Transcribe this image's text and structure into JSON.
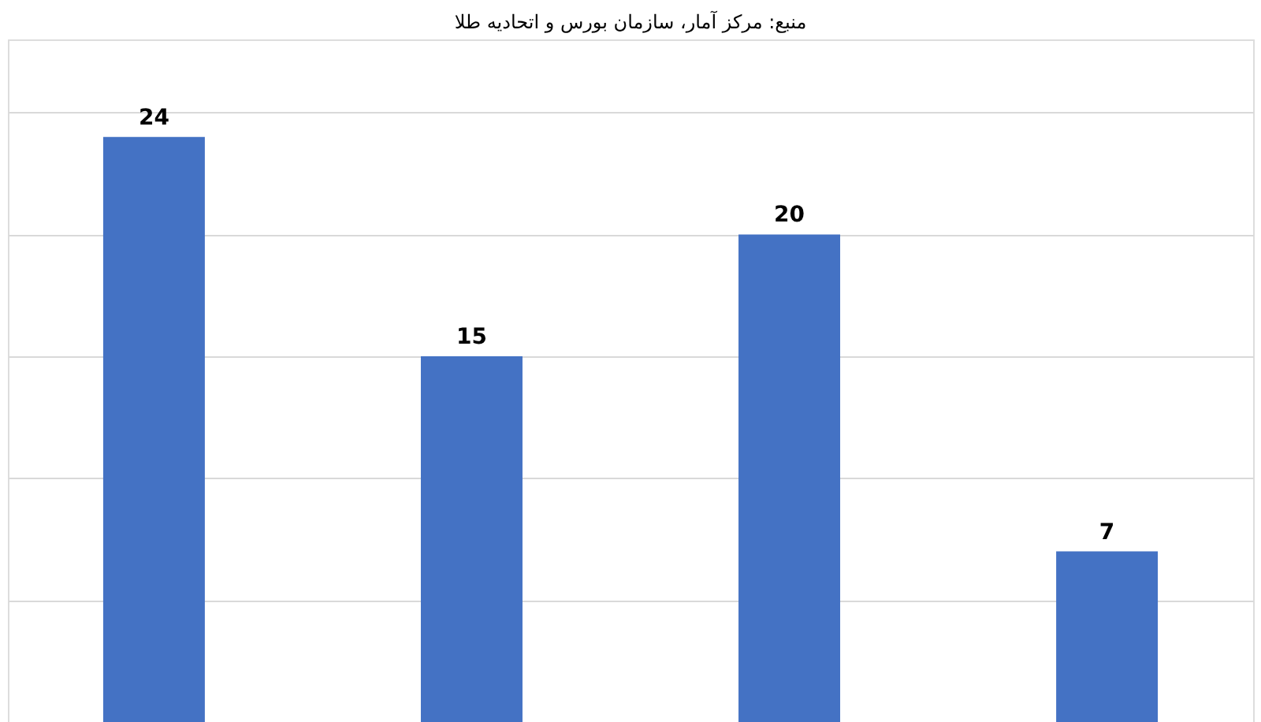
{
  "chart_data": {
    "type": "bar",
    "annotations": [
      "منبع: مرکز آمار، سازمان بورس و اتحادیه طلا"
    ],
    "categories": [
      null,
      null,
      null,
      null
    ],
    "values": [
      24,
      15,
      20,
      7
    ],
    "color": "#4472c4",
    "data_labels": true,
    "ylim": [
      0,
      28
    ],
    "yticks": [
      {
        "value": 0,
        "label": null
      },
      {
        "value": 5,
        "label": null
      },
      {
        "value": 10,
        "label": null
      },
      {
        "value": 15,
        "label": null
      },
      {
        "value": 20,
        "label": null
      },
      {
        "value": 25,
        "label": null
      }
    ],
    "grid": "y",
    "tick_labels": false
  }
}
